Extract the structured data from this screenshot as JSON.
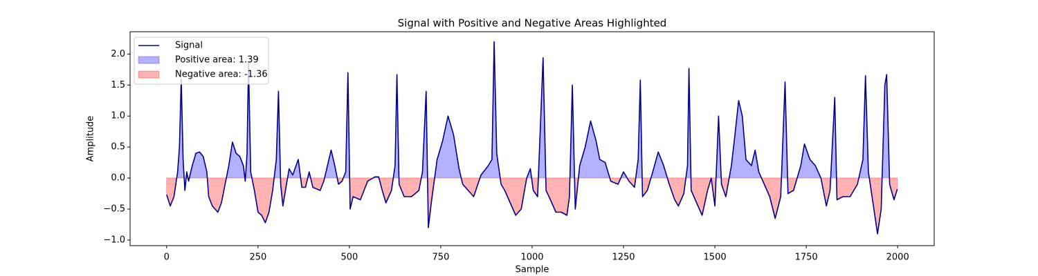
{
  "chart_data": {
    "type": "line",
    "title": "Signal with Positive and Negative Areas Highlighted",
    "xlabel": "Sample",
    "ylabel": "Amplitude",
    "x": [
      0,
      10,
      20,
      30,
      35,
      40,
      45,
      50,
      55,
      60,
      70,
      80,
      90,
      100,
      110,
      115,
      125,
      140,
      150,
      160,
      170,
      180,
      190,
      200,
      210,
      215,
      220,
      224,
      230,
      240,
      250,
      260,
      270,
      280,
      290,
      300,
      306,
      312,
      318,
      325,
      335,
      345,
      360,
      370,
      380,
      390,
      400,
      420,
      430,
      440,
      450,
      460,
      470,
      480,
      490,
      496,
      502,
      510,
      530,
      550,
      570,
      580,
      590,
      600,
      615,
      625,
      630,
      636,
      650,
      670,
      690,
      700,
      710,
      716,
      725,
      740,
      755,
      770,
      785,
      800,
      810,
      825,
      840,
      860,
      880,
      890,
      896,
      903,
      915,
      925,
      940,
      955,
      970,
      985,
      995,
      1003,
      1015,
      1030,
      1038,
      1050,
      1065,
      1080,
      1095,
      1102,
      1110,
      1118,
      1130,
      1145,
      1160,
      1175,
      1185,
      1200,
      1215,
      1235,
      1250,
      1265,
      1280,
      1290,
      1296,
      1302,
      1315,
      1330,
      1345,
      1360,
      1375,
      1390,
      1400,
      1415,
      1425,
      1429,
      1435,
      1450,
      1465,
      1480,
      1490,
      1500,
      1510,
      1518,
      1530,
      1545,
      1555,
      1565,
      1575,
      1585,
      1600,
      1610,
      1620,
      1635,
      1650,
      1665,
      1680,
      1692,
      1700,
      1715,
      1735,
      1745,
      1760,
      1775,
      1790,
      1805,
      1815,
      1828,
      1834,
      1850,
      1870,
      1890,
      1905,
      1912,
      1920,
      1930,
      1945,
      1955,
      1965,
      1970,
      1978,
      1990,
      1999
    ],
    "series": [
      {
        "name": "Signal",
        "color": "#00008b",
        "values": [
          -0.27,
          -0.45,
          -0.3,
          0.1,
          0.5,
          1.6,
          0.3,
          -0.2,
          0.1,
          -0.05,
          0.2,
          0.4,
          0.42,
          0.35,
          0.1,
          -0.3,
          -0.45,
          -0.55,
          -0.4,
          -0.1,
          0.2,
          0.58,
          0.4,
          0.35,
          0.2,
          -0.05,
          0.4,
          1.85,
          0.1,
          -0.2,
          -0.55,
          -0.6,
          -0.72,
          -0.55,
          -0.2,
          0.3,
          1.4,
          -0.1,
          -0.45,
          -0.2,
          0.15,
          0.05,
          0.3,
          -0.15,
          -0.15,
          0.1,
          -0.15,
          -0.2,
          -0.05,
          0.2,
          0.45,
          0.2,
          -0.1,
          -0.05,
          0.1,
          1.7,
          -0.5,
          -0.3,
          -0.35,
          -0.05,
          0.02,
          0.02,
          -0.2,
          -0.4,
          -0.2,
          0.2,
          1.67,
          -0.1,
          -0.3,
          -0.3,
          -0.2,
          0.1,
          1.4,
          -0.8,
          -0.35,
          0.3,
          0.6,
          1.0,
          0.7,
          0.15,
          -0.1,
          -0.2,
          -0.3,
          0.05,
          0.2,
          0.3,
          2.2,
          0.4,
          -0.1,
          -0.2,
          -0.4,
          -0.6,
          -0.5,
          0.0,
          0.15,
          -0.2,
          -0.3,
          1.94,
          -0.2,
          -0.35,
          -0.55,
          -0.55,
          -0.6,
          -0.3,
          1.5,
          -0.5,
          0.2,
          0.5,
          0.92,
          0.6,
          0.3,
          0.25,
          -0.05,
          -0.1,
          0.1,
          -0.05,
          -0.15,
          0.3,
          1.58,
          -0.3,
          -0.2,
          0.1,
          0.42,
          0.2,
          -0.1,
          -0.35,
          -0.45,
          -0.25,
          0.2,
          1.77,
          -0.2,
          -0.4,
          -0.6,
          -0.2,
          0.0,
          -0.45,
          1.0,
          -0.1,
          -0.3,
          0.2,
          0.7,
          1.25,
          1.0,
          0.3,
          0.2,
          0.45,
          0.1,
          -0.1,
          -0.3,
          -0.65,
          -0.3,
          1.55,
          -0.25,
          -0.2,
          0.2,
          0.55,
          0.3,
          0.2,
          0.0,
          -0.45,
          -0.2,
          1.3,
          -0.35,
          -0.3,
          -0.3,
          -0.1,
          0.3,
          1.65,
          0.1,
          -0.3,
          -0.9,
          -0.5,
          1.5,
          1.67,
          -0.1,
          -0.35,
          -0.18
        ]
      }
    ],
    "areas": [
      {
        "name": "Positive area: 1.39",
        "color": "#0000ff"
      },
      {
        "name": "Negative area: -1.36",
        "color": "#ff0000"
      }
    ],
    "xlim": [
      -100,
      2100
    ],
    "ylim": [
      -1.09,
      2.36
    ],
    "xticks": [
      0,
      250,
      500,
      750,
      1000,
      1250,
      1500,
      1750,
      2000
    ],
    "yticks": [
      {
        "value": -1,
        "label": "−1.0"
      },
      {
        "value": -0.5,
        "label": "−0.5"
      },
      {
        "value": 0,
        "label": "0.0"
      },
      0.5,
      {
        "value": 1,
        "label": "1.0"
      },
      1.5,
      {
        "value": 2,
        "label": "2.0"
      }
    ]
  }
}
